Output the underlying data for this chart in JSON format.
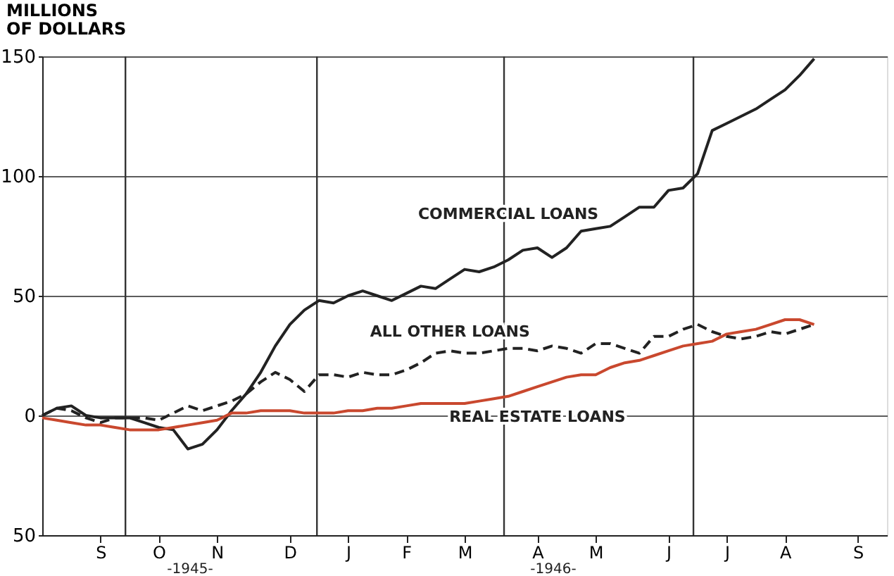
{
  "chart_data": {
    "type": "line",
    "ylabel": "MILLIONS\nOF DOLLARS",
    "categories": [
      null,
      null,
      null,
      null,
      "S",
      null,
      null,
      null,
      "O",
      null,
      null,
      null,
      "N",
      null,
      null,
      null,
      null,
      "D",
      null,
      null,
      null,
      "J",
      null,
      null,
      null,
      "F",
      null,
      null,
      null,
      "M",
      null,
      null,
      null,
      null,
      "A",
      null,
      null,
      null,
      "M",
      null,
      null,
      null,
      null,
      "J",
      null,
      null,
      null,
      "J",
      null,
      null,
      null,
      "A",
      null,
      null,
      null,
      null,
      "S",
      null,
      null
    ],
    "ylim": [
      -50,
      150
    ],
    "yticks": [
      {
        "value": -50,
        "label": "50"
      },
      0,
      50,
      100,
      150
    ],
    "grid": true,
    "annotations": [
      "-1945-",
      "-1946-"
    ],
    "series": [
      {
        "name": "COMMERCIAL LOANS",
        "color": "#222222",
        "line_style": "solid",
        "values": [
          0,
          3,
          4,
          0,
          -1,
          -1,
          -1,
          -3,
          -5,
          -6,
          -14,
          -12,
          -6,
          2,
          9,
          18,
          29,
          38,
          44,
          48,
          47,
          50,
          52,
          50,
          48,
          51,
          54,
          53,
          57,
          61,
          60,
          62,
          65,
          69,
          70,
          66,
          70,
          77,
          78,
          79,
          83,
          87,
          87,
          94,
          95,
          101,
          119,
          122,
          125,
          128,
          132,
          136,
          142,
          149,
          null,
          null,
          null,
          null,
          null
        ]
      },
      {
        "name": "ALL OTHER LOANS",
        "color": "#222222",
        "line_style": "dashed",
        "values": [
          0,
          3,
          2,
          -1,
          -3,
          -1,
          -1,
          -1,
          -2,
          1,
          4,
          2,
          4,
          6,
          9,
          14,
          18,
          15,
          10,
          17,
          17,
          16,
          18,
          17,
          17,
          19,
          22,
          26,
          27,
          26,
          26,
          27,
          28,
          28,
          27,
          29,
          28,
          26,
          30,
          30,
          28,
          26,
          33,
          33,
          36,
          38,
          35,
          33,
          32,
          33,
          35,
          34,
          36,
          38,
          null,
          null,
          null,
          null,
          null
        ]
      },
      {
        "name": "REAL ESTATE LOANS",
        "color": "#c9482e",
        "line_style": "solid",
        "values": [
          -1,
          -2,
          -3,
          -4,
          -4,
          -5,
          -6,
          -6,
          -6,
          -5,
          -4,
          -3,
          -2,
          1,
          1,
          2,
          2,
          2,
          1,
          1,
          1,
          2,
          2,
          3,
          3,
          4,
          5,
          5,
          5,
          5,
          6,
          7,
          8,
          10,
          12,
          14,
          16,
          17,
          17,
          20,
          22,
          23,
          25,
          27,
          29,
          30,
          31,
          34,
          35,
          36,
          38,
          40,
          40,
          38,
          null,
          null,
          null,
          null,
          null
        ]
      }
    ]
  }
}
